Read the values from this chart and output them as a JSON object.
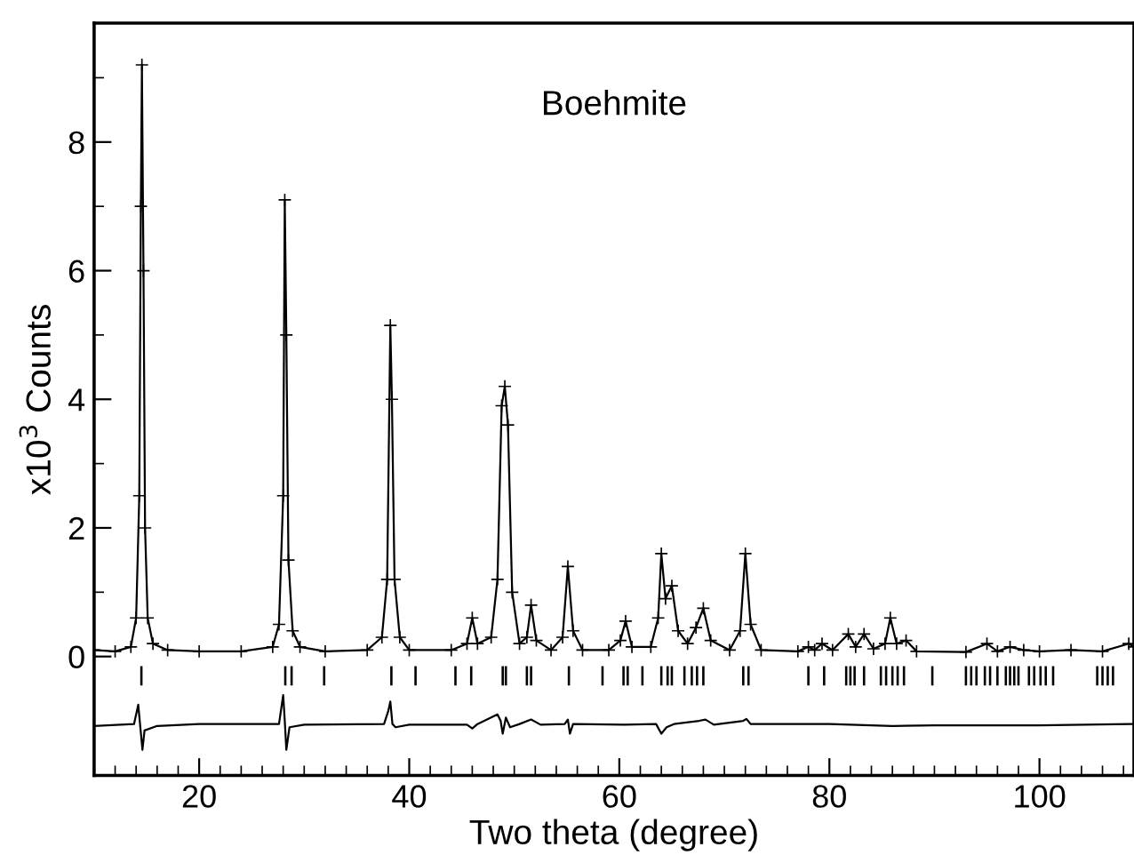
{
  "chart_data": {
    "type": "line",
    "title": "Boehmite",
    "xlabel": "Two theta (degree)",
    "ylabel": "x10$^{3}$ Counts",
    "xlim": [
      10,
      109
    ],
    "ylim": [
      -1.85,
      9.85
    ],
    "xticks": [
      {
        "value": 12,
        "label": null
      },
      {
        "value": 14,
        "label": null
      },
      {
        "value": 16,
        "label": null
      },
      {
        "value": 18,
        "label": null
      },
      20,
      {
        "value": 22,
        "label": null
      },
      {
        "value": 24,
        "label": null
      },
      {
        "value": 26,
        "label": null
      },
      {
        "value": 28,
        "label": null
      },
      {
        "value": 30,
        "label": null
      },
      {
        "value": 32,
        "label": null
      },
      {
        "value": 34,
        "label": null
      },
      {
        "value": 36,
        "label": null
      },
      {
        "value": 38,
        "label": null
      },
      40,
      {
        "value": 42,
        "label": null
      },
      {
        "value": 44,
        "label": null
      },
      {
        "value": 46,
        "label": null
      },
      {
        "value": 48,
        "label": null
      },
      {
        "value": 50,
        "label": null
      },
      {
        "value": 52,
        "label": null
      },
      {
        "value": 54,
        "label": null
      },
      {
        "value": 56,
        "label": null
      },
      {
        "value": 58,
        "label": null
      },
      60,
      {
        "value": 62,
        "label": null
      },
      {
        "value": 64,
        "label": null
      },
      {
        "value": 66,
        "label": null
      },
      {
        "value": 68,
        "label": null
      },
      {
        "value": 70,
        "label": null
      },
      {
        "value": 72,
        "label": null
      },
      {
        "value": 74,
        "label": null
      },
      {
        "value": 76,
        "label": null
      },
      {
        "value": 78,
        "label": null
      },
      80,
      {
        "value": 82,
        "label": null
      },
      {
        "value": 84,
        "label": null
      },
      {
        "value": 86,
        "label": null
      },
      {
        "value": 88,
        "label": null
      },
      {
        "value": 90,
        "label": null
      },
      {
        "value": 92,
        "label": null
      },
      {
        "value": 94,
        "label": null
      },
      {
        "value": 96,
        "label": null
      },
      {
        "value": 98,
        "label": null
      },
      100,
      {
        "value": 102,
        "label": null
      },
      {
        "value": 104,
        "label": null
      },
      {
        "value": 106,
        "label": null
      },
      {
        "value": 108,
        "label": null
      }
    ],
    "yticks": [
      0,
      {
        "value": 1,
        "label": null
      },
      2,
      {
        "value": 3,
        "label": null
      },
      4,
      {
        "value": 5,
        "label": null
      },
      6,
      {
        "value": 7,
        "label": null
      },
      8,
      {
        "value": 9,
        "label": null
      }
    ],
    "grid": false,
    "legend": false,
    "series": [
      {
        "marker": "cross",
        "color": "#000000",
        "x": [
          10,
          12,
          13.5,
          14.0,
          14.3,
          14.45,
          14.55,
          14.7,
          14.85,
          15.1,
          15.6,
          17,
          20,
          24,
          27.0,
          27.6,
          28.0,
          28.15,
          28.3,
          28.5,
          28.9,
          29.6,
          32,
          36,
          37.4,
          37.9,
          38.2,
          38.35,
          38.6,
          39.1,
          40,
          44,
          45.5,
          46.0,
          46.5,
          47.8,
          48.4,
          48.8,
          49.1,
          49.4,
          49.8,
          50.5,
          51.2,
          51.6,
          52.1,
          53.5,
          54.6,
          55.1,
          55.6,
          56.5,
          59,
          60.1,
          60.6,
          61.2,
          63.0,
          63.7,
          64.0,
          64.4,
          65.0,
          65.6,
          66.5,
          67.3,
          68.0,
          68.7,
          70.5,
          71.5,
          72.0,
          72.5,
          73.5,
          77,
          78.0,
          78.6,
          79.3,
          80.3,
          81.8,
          82.5,
          83.3,
          84.2,
          85.3,
          85.8,
          86.4,
          87.3,
          88.3,
          93,
          95,
          96,
          97.2,
          98.5,
          100,
          103,
          106,
          108.5,
          109
        ],
        "values": [
          0.1,
          0.08,
          0.15,
          0.6,
          2.5,
          7.0,
          9.2,
          6.0,
          2.0,
          0.6,
          0.2,
          0.1,
          0.08,
          0.08,
          0.15,
          0.5,
          2.5,
          7.1,
          5.0,
          1.5,
          0.4,
          0.15,
          0.08,
          0.1,
          0.3,
          1.2,
          5.15,
          4.0,
          1.2,
          0.3,
          0.1,
          0.1,
          0.2,
          0.6,
          0.2,
          0.3,
          1.2,
          3.9,
          4.2,
          3.6,
          1.0,
          0.2,
          0.3,
          0.8,
          0.25,
          0.1,
          0.3,
          1.4,
          0.4,
          0.1,
          0.1,
          0.25,
          0.55,
          0.15,
          0.15,
          0.6,
          1.6,
          0.9,
          1.1,
          0.4,
          0.2,
          0.45,
          0.75,
          0.25,
          0.1,
          0.4,
          1.6,
          0.5,
          0.1,
          0.08,
          0.15,
          0.1,
          0.2,
          0.1,
          0.35,
          0.15,
          0.35,
          0.12,
          0.2,
          0.6,
          0.2,
          0.25,
          0.08,
          0.07,
          0.2,
          0.08,
          0.15,
          0.1,
          0.08,
          0.1,
          0.08,
          0.2,
          0.15
        ]
      },
      {
        "marker": "none",
        "color": "#000000",
        "x": [
          10,
          13.8,
          14.2,
          14.4,
          14.6,
          14.8,
          16,
          20,
          27.6,
          28.0,
          28.15,
          28.3,
          28.6,
          30,
          37.6,
          38.0,
          38.2,
          38.4,
          38.7,
          40,
          45.5,
          46,
          46.5,
          48.4,
          48.7,
          48.9,
          49.2,
          49.6,
          50.5,
          51.6,
          52.5,
          54.8,
          55.1,
          55.3,
          55.6,
          60.5,
          63.5,
          64.0,
          64.5,
          65.2,
          67.6,
          68.2,
          69,
          71.8,
          72.1,
          72.5,
          80,
          86,
          90,
          100,
          109
        ],
        "values": [
          -1.08,
          -1.05,
          -0.75,
          -1.1,
          -1.45,
          -1.15,
          -1.08,
          -1.05,
          -1.05,
          -0.6,
          -1.0,
          -1.45,
          -1.1,
          -1.06,
          -1.05,
          -0.85,
          -0.7,
          -1.05,
          -1.1,
          -1.06,
          -1.06,
          -1.12,
          -1.05,
          -0.9,
          -1.0,
          -1.2,
          -0.95,
          -1.1,
          -1.05,
          -0.98,
          -1.06,
          -1.05,
          -0.98,
          -1.2,
          -1.05,
          -1.06,
          -1.05,
          -1.2,
          -1.1,
          -1.05,
          -1.0,
          -0.98,
          -1.06,
          -1.0,
          -0.97,
          -1.05,
          -1.05,
          -1.08,
          -1.07,
          -1.07,
          -1.05
        ]
      },
      {
        "type": "bar",
        "color": "#000000",
        "base": [
          -0.45,
          -0.45,
          -0.45,
          -0.45,
          -0.45,
          -0.45,
          -0.45,
          -0.45,
          -0.45,
          -0.45,
          -0.45,
          -0.45,
          -0.45,
          -0.45,
          -0.45,
          -0.45,
          -0.45,
          -0.45,
          -0.45,
          -0.45,
          -0.45,
          -0.45,
          -0.45,
          -0.45,
          -0.45,
          -0.45,
          -0.45,
          -0.45,
          -0.45,
          -0.45,
          -0.45,
          -0.45,
          -0.45,
          -0.45,
          -0.45,
          -0.45,
          -0.45,
          -0.45,
          -0.45,
          -0.45,
          -0.45,
          -0.45,
          -0.45,
          -0.45,
          -0.45,
          -0.45,
          -0.45,
          -0.45,
          -0.45,
          -0.45,
          -0.45,
          -0.45,
          -0.45,
          -0.45,
          -0.45,
          -0.45,
          -0.45
        ],
        "x": [
          14.5,
          28.2,
          28.8,
          31.9,
          38.3,
          40.6,
          44.4,
          45.9,
          48.9,
          49.2,
          51.2,
          51.6,
          55.2,
          58.4,
          60.4,
          60.8,
          62.2,
          64.0,
          64.6,
          65.0,
          66.2,
          66.9,
          67.4,
          68.0,
          71.8,
          72.3,
          78.0,
          79.5,
          81.6,
          82.0,
          82.4,
          83.3,
          84.9,
          85.4,
          86.0,
          86.5,
          87.1,
          89.8,
          93.0,
          93.5,
          94.0,
          94.8,
          95.3,
          96.0,
          96.8,
          97.2,
          97.6,
          98.0,
          99.0,
          99.5,
          100.1,
          100.6,
          101.3,
          105.5,
          106.0,
          106.5,
          107.0
        ],
        "values": [
          0.3,
          0.3,
          0.3,
          0.3,
          0.3,
          0.3,
          0.3,
          0.3,
          0.3,
          0.3,
          0.3,
          0.3,
          0.3,
          0.3,
          0.3,
          0.3,
          0.3,
          0.3,
          0.3,
          0.3,
          0.3,
          0.3,
          0.3,
          0.3,
          0.3,
          0.3,
          0.3,
          0.3,
          0.3,
          0.3,
          0.3,
          0.3,
          0.3,
          0.3,
          0.3,
          0.3,
          0.3,
          0.3,
          0.3,
          0.3,
          0.3,
          0.3,
          0.3,
          0.3,
          0.3,
          0.3,
          0.3,
          0.3,
          0.3,
          0.3,
          0.3,
          0.3,
          0.3,
          0.3,
          0.3,
          0.3,
          0.3
        ]
      }
    ]
  }
}
